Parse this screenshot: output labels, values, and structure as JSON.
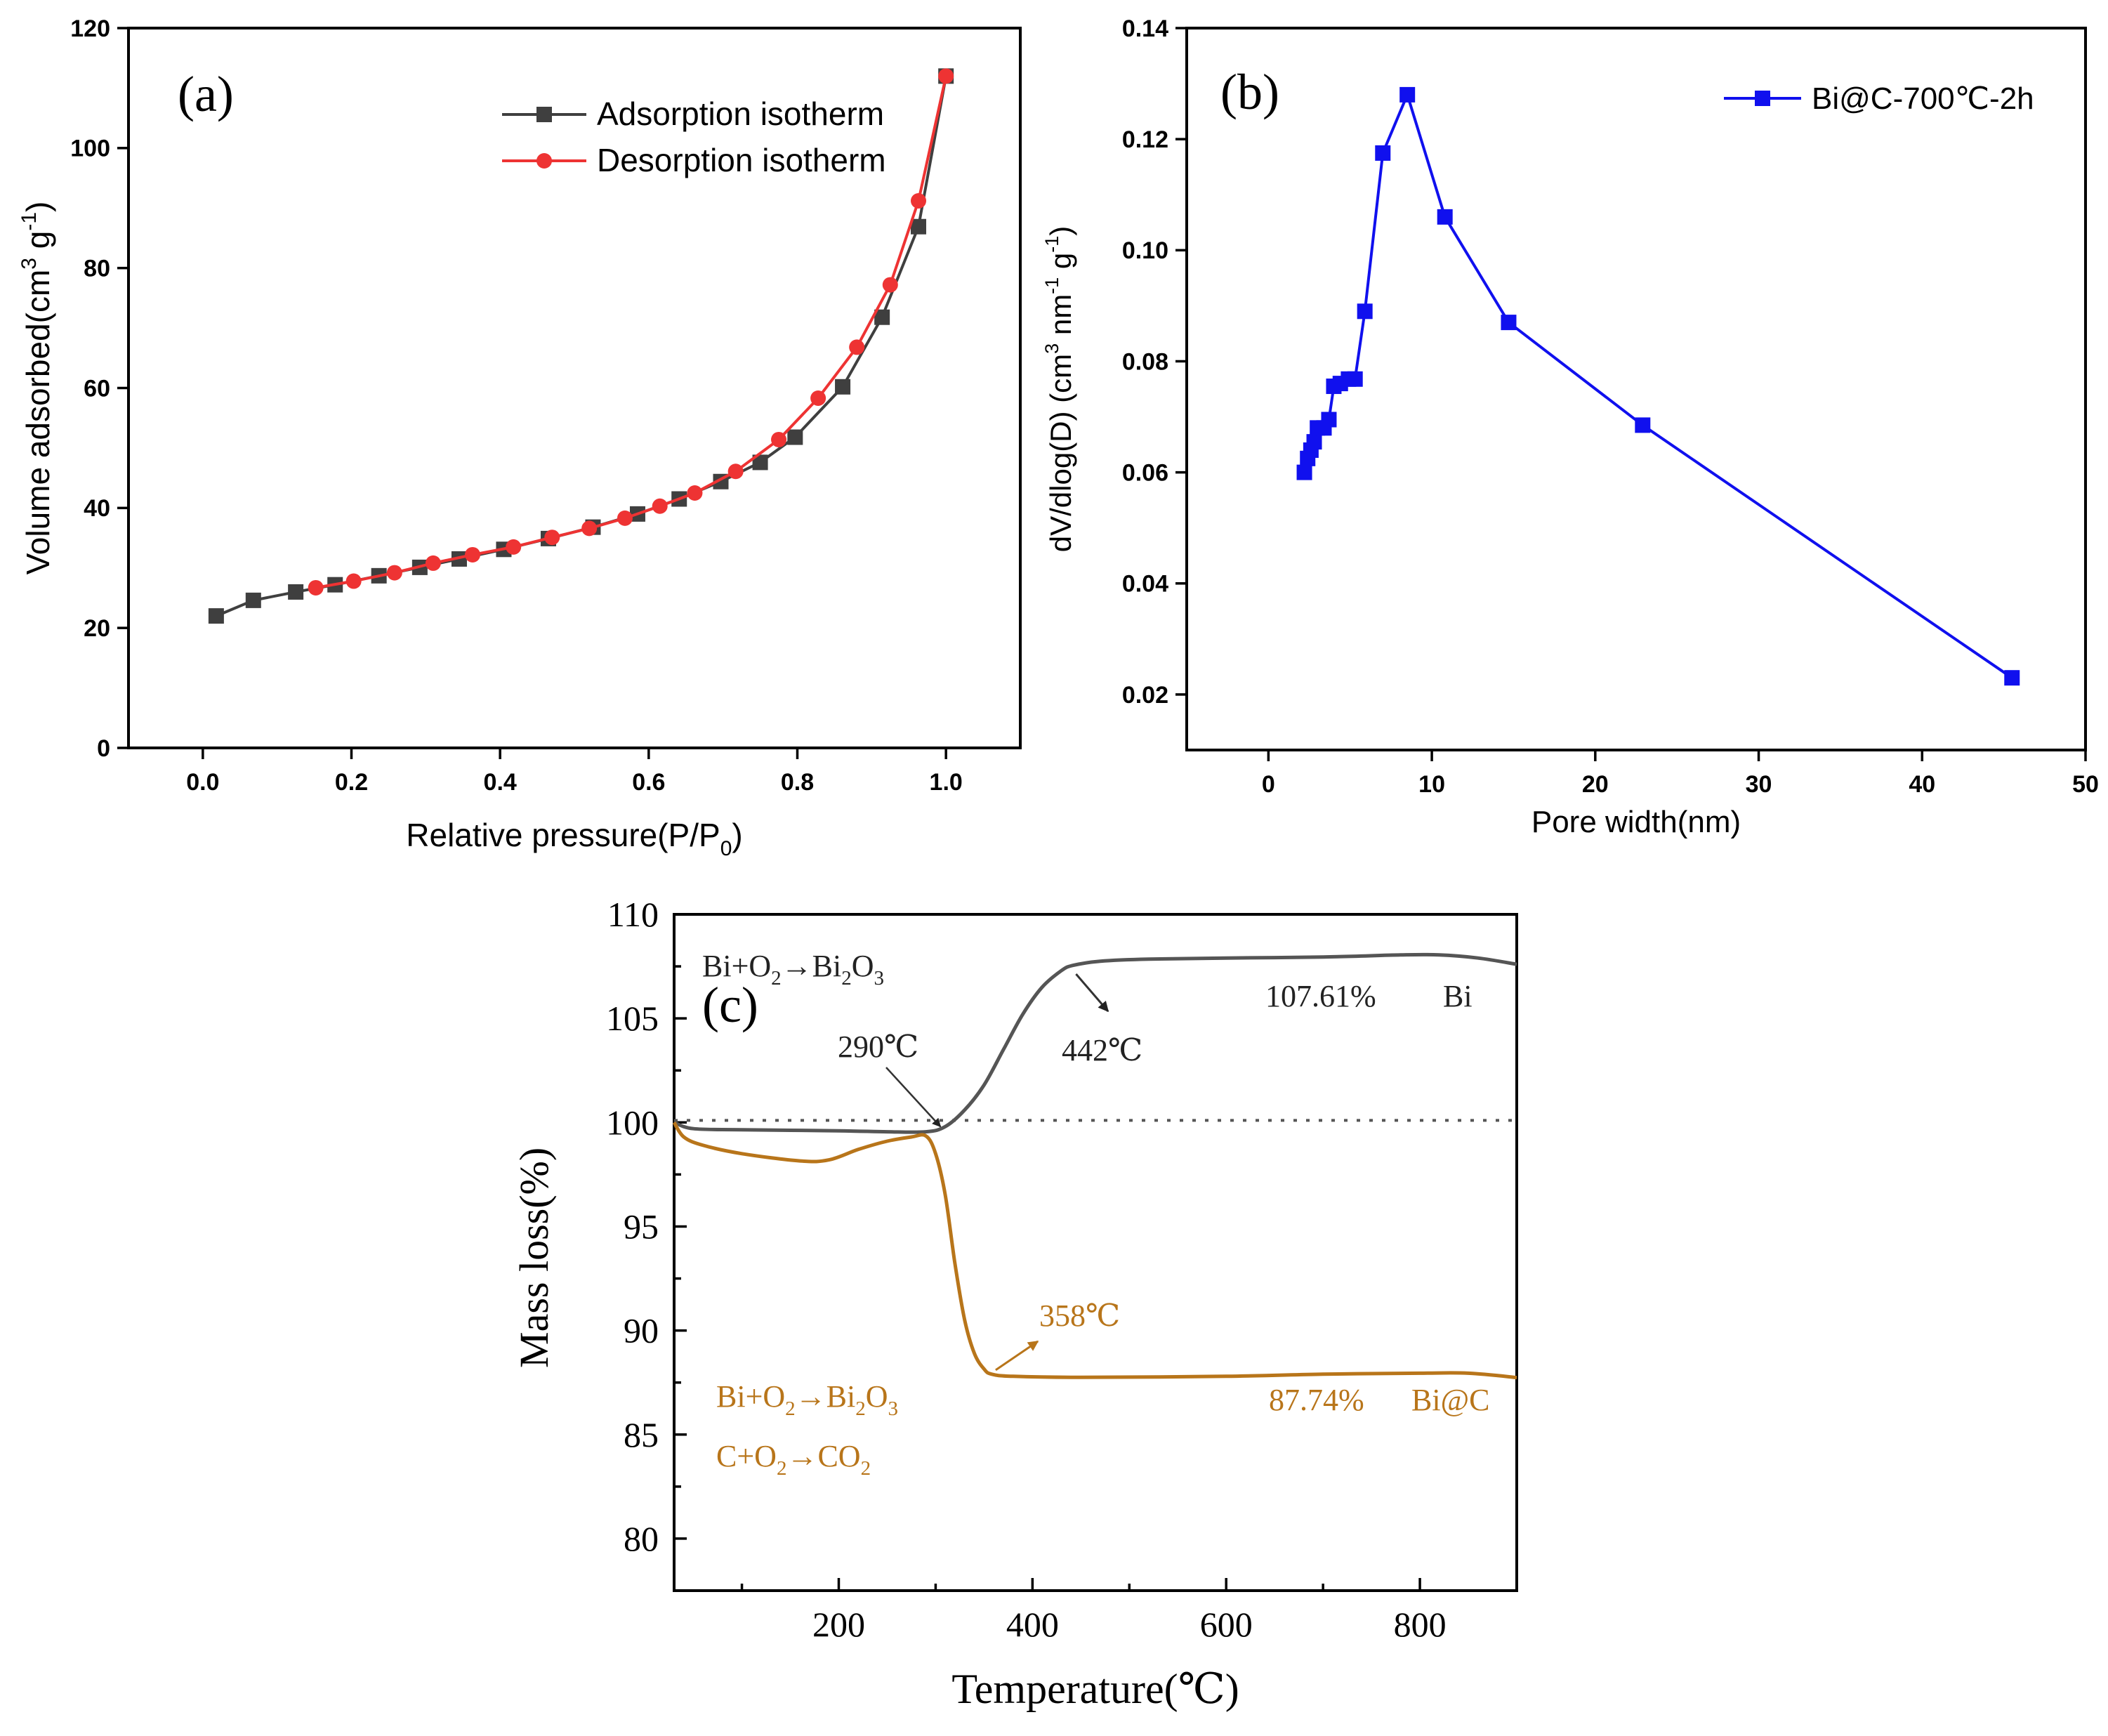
{
  "colors": {
    "adsorption": "#3f3f3f",
    "desorption": "#ee3333",
    "pore": "#1010ee",
    "tga_bi": "#555555",
    "tga_bic": "#b8751a",
    "axis": "#000000"
  },
  "chart_data": [
    {
      "panel": "a",
      "type": "line",
      "panel_label": "(a)",
      "xlabel": "Relative pressure(P/P",
      "xlabel_sub": "0",
      "xlabel_end": ")",
      "ylabel": "Volume adsorbed(cm",
      "ylabel_sup1": "3",
      "ylabel_mid": " g",
      "ylabel_sup2": "-1",
      "ylabel_end": ")",
      "xlim": [
        -0.1,
        1.1
      ],
      "ylim": [
        0,
        120
      ],
      "xticks": [
        0.0,
        0.2,
        0.4,
        0.6,
        0.8,
        1.0
      ],
      "xtick_labels": [
        "0.0",
        "0.2",
        "0.4",
        "0.6",
        "0.8",
        "1.0"
      ],
      "yticks": [
        0,
        20,
        40,
        60,
        80,
        100,
        120
      ],
      "ytick_labels": [
        "0",
        "20",
        "40",
        "60",
        "80",
        "100",
        "120"
      ],
      "legend_position": "top-right",
      "series": [
        {
          "name": "Adsorption isotherm",
          "marker": "square",
          "color_key": "adsorption",
          "points": [
            [
              0.018,
              22.0
            ],
            [
              0.068,
              24.6
            ],
            [
              0.125,
              26.0
            ],
            [
              0.178,
              27.2
            ],
            [
              0.237,
              28.7
            ],
            [
              0.292,
              30.1
            ],
            [
              0.345,
              31.5
            ],
            [
              0.405,
              33.1
            ],
            [
              0.465,
              34.9
            ],
            [
              0.525,
              36.8
            ],
            [
              0.585,
              39.0
            ],
            [
              0.641,
              41.5
            ],
            [
              0.697,
              44.4
            ],
            [
              0.75,
              47.6
            ],
            [
              0.797,
              51.8
            ],
            [
              0.861,
              60.2
            ],
            [
              0.914,
              71.8
            ],
            [
              0.963,
              86.9
            ],
            [
              1.0,
              112.0
            ]
          ]
        },
        {
          "name": "Desorption isotherm",
          "marker": "circle",
          "color_key": "desorption",
          "points": [
            [
              1.0,
              112.0
            ],
            [
              0.963,
              91.2
            ],
            [
              0.925,
              77.2
            ],
            [
              0.88,
              66.8
            ],
            [
              0.828,
              58.3
            ],
            [
              0.775,
              51.4
            ],
            [
              0.717,
              46.1
            ],
            [
              0.662,
              42.5
            ],
            [
              0.615,
              40.3
            ],
            [
              0.568,
              38.3
            ],
            [
              0.52,
              36.6
            ],
            [
              0.47,
              35.1
            ],
            [
              0.418,
              33.5
            ],
            [
              0.363,
              32.2
            ],
            [
              0.31,
              30.8
            ],
            [
              0.258,
              29.2
            ],
            [
              0.203,
              27.8
            ],
            [
              0.152,
              26.7
            ]
          ]
        }
      ]
    },
    {
      "panel": "b",
      "type": "line",
      "panel_label": "(b)",
      "xlabel": "Pore width(nm)",
      "ylabel": "dV/dlog(D) (cm",
      "ylabel_sup1": "3",
      "ylabel_mid1": " nm",
      "ylabel_sup2": "-1",
      "ylabel_mid2": " g",
      "ylabel_sup3": "-1",
      "ylabel_end": ")",
      "xlim": [
        -5,
        50
      ],
      "ylim": [
        0.01,
        0.14
      ],
      "xticks": [
        0,
        10,
        20,
        30,
        40,
        50
      ],
      "xtick_labels": [
        "0",
        "10",
        "20",
        "30",
        "40",
        "50"
      ],
      "yticks": [
        0.02,
        0.04,
        0.06,
        0.08,
        0.1,
        0.12,
        0.14
      ],
      "ytick_labels": [
        "0.02",
        "0.04",
        "0.06",
        "0.08",
        "0.10",
        "0.12",
        "0.14"
      ],
      "legend_position": "top-right",
      "series": [
        {
          "name": "Bi@C-700℃-2h",
          "marker": "square",
          "color_key": "pore",
          "points": [
            [
              2.2,
              0.06
            ],
            [
              2.4,
              0.0625
            ],
            [
              2.6,
              0.064
            ],
            [
              2.8,
              0.0655
            ],
            [
              3.0,
              0.068
            ],
            [
              3.4,
              0.068
            ],
            [
              3.7,
              0.0695
            ],
            [
              4.0,
              0.0755
            ],
            [
              4.4,
              0.076
            ],
            [
              4.9,
              0.0768
            ],
            [
              5.3,
              0.0768
            ],
            [
              5.9,
              0.089
            ],
            [
              7.0,
              0.1175
            ],
            [
              8.5,
              0.128
            ],
            [
              10.8,
              0.106
            ],
            [
              14.7,
              0.087
            ],
            [
              22.9,
              0.0685
            ],
            [
              45.5,
              0.023
            ]
          ]
        }
      ]
    },
    {
      "panel": "c",
      "type": "line",
      "panel_label": "(c)",
      "xlabel": "Temperature(℃)",
      "ylabel": "Mass loss(%)",
      "xlim": [
        30,
        900
      ],
      "ylim": [
        77.5,
        110
      ],
      "xticks": [
        200,
        400,
        600,
        800
      ],
      "xtick_labels": [
        "200",
        "400",
        "600",
        "800"
      ],
      "yticks": [
        80,
        85,
        90,
        95,
        100,
        105,
        110
      ],
      "ytick_labels": [
        "80",
        "85",
        "90",
        "95",
        "100",
        "105",
        "110"
      ],
      "reference_line": 100.1,
      "series": [
        {
          "name": "Bi",
          "color_key": "tga_bi",
          "points": [
            [
              30,
              100.0
            ],
            [
              50,
              99.7
            ],
            [
              100,
              99.65
            ],
            [
              200,
              99.6
            ],
            [
              250,
              99.55
            ],
            [
              290,
              99.55
            ],
            [
              310,
              99.8
            ],
            [
              330,
              100.6
            ],
            [
              350,
              101.8
            ],
            [
              370,
              103.5
            ],
            [
              390,
              105.2
            ],
            [
              410,
              106.5
            ],
            [
              430,
              107.3
            ],
            [
              442,
              107.55
            ],
            [
              470,
              107.75
            ],
            [
              520,
              107.85
            ],
            [
              600,
              107.9
            ],
            [
              700,
              107.95
            ],
            [
              780,
              108.05
            ],
            [
              820,
              108.05
            ],
            [
              860,
              107.9
            ],
            [
              900,
              107.6
            ]
          ]
        },
        {
          "name": "Bi@C",
          "color_key": "tga_bic",
          "points": [
            [
              30,
              100.0
            ],
            [
              40,
              99.3
            ],
            [
              60,
              98.9
            ],
            [
              100,
              98.5
            ],
            [
              160,
              98.15
            ],
            [
              190,
              98.2
            ],
            [
              220,
              98.7
            ],
            [
              250,
              99.1
            ],
            [
              275,
              99.3
            ],
            [
              290,
              99.35
            ],
            [
              300,
              98.5
            ],
            [
              310,
              96.5
            ],
            [
              320,
              93.2
            ],
            [
              330,
              90.5
            ],
            [
              340,
              88.9
            ],
            [
              350,
              88.15
            ],
            [
              358,
              87.9
            ],
            [
              380,
              87.8
            ],
            [
              450,
              87.75
            ],
            [
              600,
              87.8
            ],
            [
              700,
              87.9
            ],
            [
              800,
              87.95
            ],
            [
              850,
              87.95
            ],
            [
              900,
              87.74
            ]
          ]
        }
      ],
      "annotations": {
        "bi_reaction": [
          "Bi+O",
          "2",
          "→Bi",
          "2",
          "O",
          "3"
        ],
        "temp_290": "290℃",
        "temp_442": "442℃",
        "bi_value": "107.61%",
        "bi_label": "Bi",
        "temp_358": "358℃",
        "bic_reaction1": [
          "Bi+O",
          "2",
          "→Bi",
          "2",
          "O",
          "3"
        ],
        "bic_reaction2": [
          "C+O",
          "2",
          "→CO",
          "2"
        ],
        "bic_value": "87.74%",
        "bic_label": "Bi@C"
      }
    }
  ]
}
